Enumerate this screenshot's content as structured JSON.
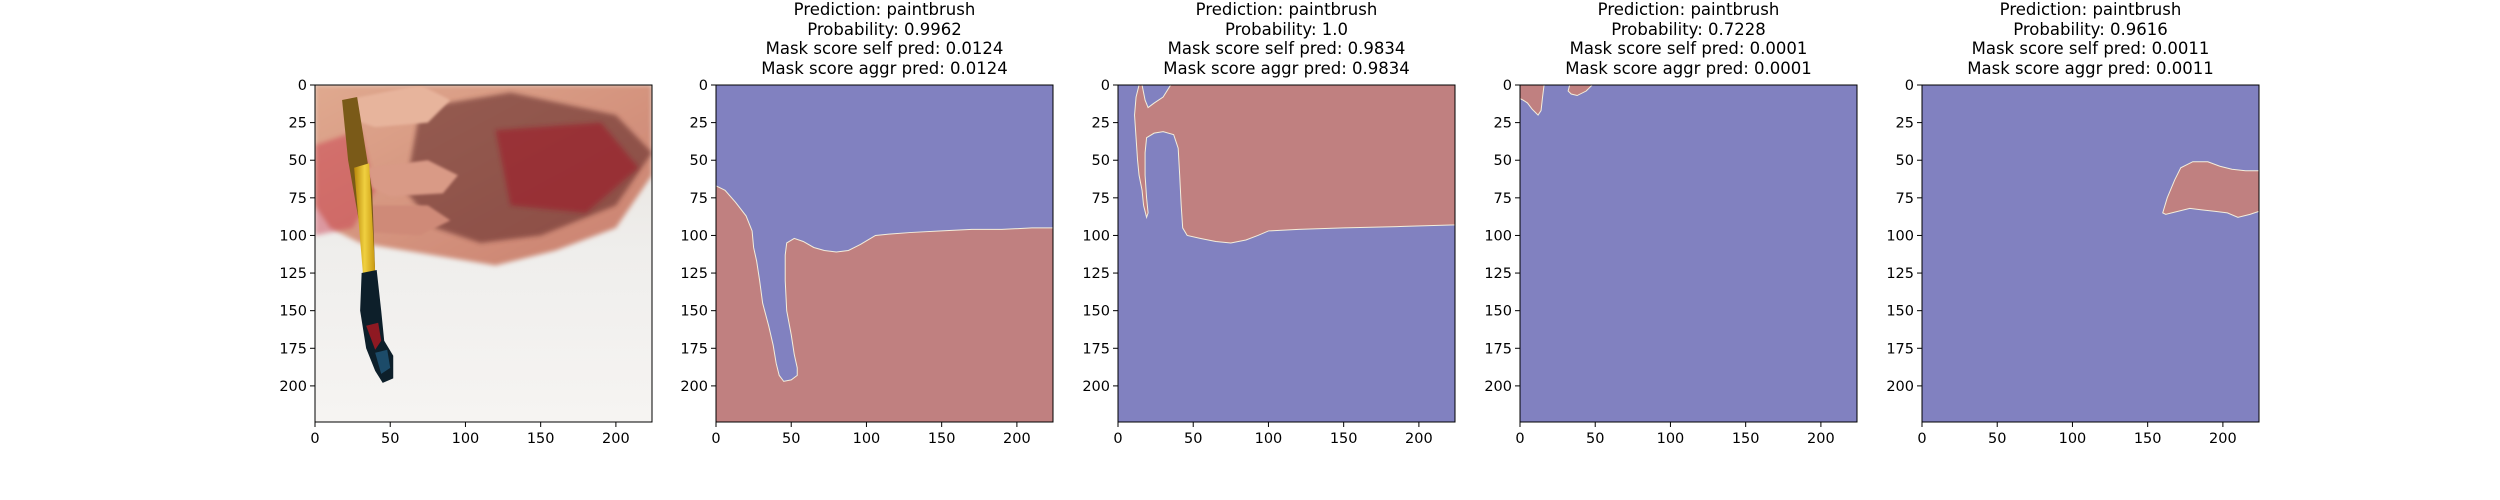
{
  "figure": {
    "colors": {
      "mask_blue": "#8181c0",
      "mask_red": "#c08080",
      "axes": "#000000",
      "text": "#000000",
      "background": "#ffffff"
    }
  },
  "chart_data": [
    {
      "type": "image",
      "content": "photo of a hand holding a paintbrush with red and black paint",
      "xlim": [
        0,
        224
      ],
      "ylim": [
        224,
        0
      ],
      "xticks": [
        0,
        50,
        100,
        150,
        200
      ],
      "yticks": [
        0,
        25,
        50,
        75,
        100,
        125,
        150,
        175,
        200
      ],
      "title_lines": []
    },
    {
      "type": "heatmap",
      "title_lines": [
        "Prediction: paintbrush",
        "Probability: 0.9962",
        "Mask score self pred: 0.0124",
        "Mask score aggr pred: 0.0124"
      ],
      "prediction": "paintbrush",
      "probability": 0.9962,
      "mask_score_self_pred": 0.0124,
      "mask_score_aggr_pred": 0.0124,
      "xlim": [
        0,
        224
      ],
      "ylim": [
        224,
        0
      ],
      "xticks": [
        0,
        50,
        100,
        150,
        200
      ],
      "yticks": [
        0,
        25,
        50,
        75,
        100,
        125,
        150,
        175,
        200
      ],
      "background_class": "blue",
      "regions": [
        {
          "class": "red",
          "polygon": [
            [
              0,
              67
            ],
            [
              6,
              70
            ],
            [
              13,
              78
            ],
            [
              20,
              87
            ],
            [
              24,
              97
            ],
            [
              25,
              108
            ],
            [
              27,
              117
            ],
            [
              29,
              130
            ],
            [
              31,
              145
            ],
            [
              35,
              160
            ],
            [
              38,
              173
            ],
            [
              40,
              185
            ],
            [
              42,
              193
            ],
            [
              45,
              197
            ],
            [
              50,
              196
            ],
            [
              54,
              193
            ],
            [
              54,
              188
            ],
            [
              52,
              179
            ],
            [
              50,
              166
            ],
            [
              47,
              150
            ],
            [
              46,
              130
            ],
            [
              46,
              113
            ],
            [
              47,
              105
            ],
            [
              52,
              102
            ],
            [
              58,
              104
            ],
            [
              65,
              108
            ],
            [
              72,
              110
            ],
            [
              80,
              111
            ],
            [
              88,
              110
            ],
            [
              96,
              106
            ],
            [
              101,
              103
            ],
            [
              106,
              100
            ],
            [
              116,
              99
            ],
            [
              130,
              98
            ],
            [
              150,
              97
            ],
            [
              170,
              96
            ],
            [
              190,
              96
            ],
            [
              210,
              95
            ],
            [
              224,
              95
            ],
            [
              224,
              224
            ],
            [
              0,
              224
            ]
          ]
        }
      ]
    },
    {
      "type": "heatmap",
      "title_lines": [
        "Prediction: paintbrush",
        "Probability: 1.0",
        "Mask score self pred: 0.9834",
        "Mask score aggr pred: 0.9834"
      ],
      "prediction": "paintbrush",
      "probability": 1.0,
      "mask_score_self_pred": 0.9834,
      "mask_score_aggr_pred": 0.9834,
      "xlim": [
        0,
        224
      ],
      "ylim": [
        224,
        0
      ],
      "xticks": [
        0,
        50,
        100,
        150,
        200
      ],
      "yticks": [
        0,
        25,
        50,
        75,
        100,
        125,
        150,
        175,
        200
      ],
      "background_class": "blue",
      "regions": [
        {
          "class": "red",
          "polygon": [
            [
              0,
              0
            ],
            [
              14,
              0
            ],
            [
              12,
              8
            ],
            [
              11,
              20
            ],
            [
              12,
              35
            ],
            [
              13,
              50
            ],
            [
              14,
              60
            ],
            [
              16,
              70
            ],
            [
              17,
              80
            ],
            [
              19,
              88
            ],
            [
              20,
              85
            ],
            [
              19,
              75
            ],
            [
              18,
              60
            ],
            [
              18,
              45
            ],
            [
              19,
              35
            ],
            [
              24,
              32
            ],
            [
              30,
              31
            ],
            [
              37,
              33
            ],
            [
              40,
              42
            ],
            [
              41,
              60
            ],
            [
              42,
              80
            ],
            [
              43,
              95
            ],
            [
              46,
              100
            ],
            [
              55,
              102
            ],
            [
              65,
              104
            ],
            [
              75,
              105
            ],
            [
              85,
              103
            ],
            [
              93,
              100
            ],
            [
              100,
              97
            ],
            [
              120,
              96
            ],
            [
              150,
              95
            ],
            [
              190,
              94
            ],
            [
              224,
              93
            ],
            [
              224,
              0
            ],
            [
              35,
              0
            ],
            [
              30,
              8
            ],
            [
              24,
              12
            ],
            [
              20,
              15
            ],
            [
              18,
              10
            ],
            [
              16,
              0
            ]
          ]
        }
      ]
    },
    {
      "type": "heatmap",
      "title_lines": [
        "Prediction: paintbrush",
        "Probability: 0.7228",
        "Mask score self pred: 0.0001",
        "Mask score aggr pred: 0.0001"
      ],
      "prediction": "paintbrush",
      "probability": 0.7228,
      "mask_score_self_pred": 0.0001,
      "mask_score_aggr_pred": 0.0001,
      "xlim": [
        0,
        224
      ],
      "ylim": [
        224,
        0
      ],
      "xticks": [
        0,
        50,
        100,
        150,
        200
      ],
      "yticks": [
        0,
        25,
        50,
        75,
        100,
        125,
        150,
        175,
        200
      ],
      "background_class": "blue",
      "regions": [
        {
          "class": "red",
          "polygon": [
            [
              0,
              0
            ],
            [
              16,
              0
            ],
            [
              15,
              8
            ],
            [
              14,
              17
            ],
            [
              12,
              20
            ],
            [
              8,
              16
            ],
            [
              5,
              12
            ],
            [
              2,
              10
            ],
            [
              0,
              9
            ]
          ]
        },
        {
          "class": "red",
          "polygon": [
            [
              33,
              0
            ],
            [
              48,
              0
            ],
            [
              44,
              4
            ],
            [
              38,
              7
            ],
            [
              34,
              6
            ],
            [
              32,
              4
            ]
          ]
        }
      ]
    },
    {
      "type": "heatmap",
      "title_lines": [
        "Prediction: paintbrush",
        "Probability: 0.9616",
        "Mask score self pred: 0.0011",
        "Mask score aggr pred: 0.0011"
      ],
      "prediction": "paintbrush",
      "probability": 0.9616,
      "mask_score_self_pred": 0.0011,
      "mask_score_aggr_pred": 0.0011,
      "xlim": [
        0,
        224
      ],
      "ylim": [
        224,
        0
      ],
      "xticks": [
        0,
        50,
        100,
        150,
        200
      ],
      "yticks": [
        0,
        25,
        50,
        75,
        100,
        125,
        150,
        175,
        200
      ],
      "background_class": "blue",
      "regions": [
        {
          "class": "red",
          "polygon": [
            [
              160,
              85
            ],
            [
              163,
              75
            ],
            [
              168,
              63
            ],
            [
              172,
              55
            ],
            [
              180,
              51
            ],
            [
              190,
              51
            ],
            [
              198,
              54
            ],
            [
              206,
              56
            ],
            [
              215,
              57
            ],
            [
              224,
              57
            ],
            [
              224,
              84
            ],
            [
              218,
              86
            ],
            [
              210,
              88
            ],
            [
              203,
              85
            ],
            [
              195,
              84
            ],
            [
              186,
              83
            ],
            [
              178,
              82
            ],
            [
              170,
              84
            ],
            [
              162,
              86
            ]
          ]
        }
      ]
    }
  ]
}
